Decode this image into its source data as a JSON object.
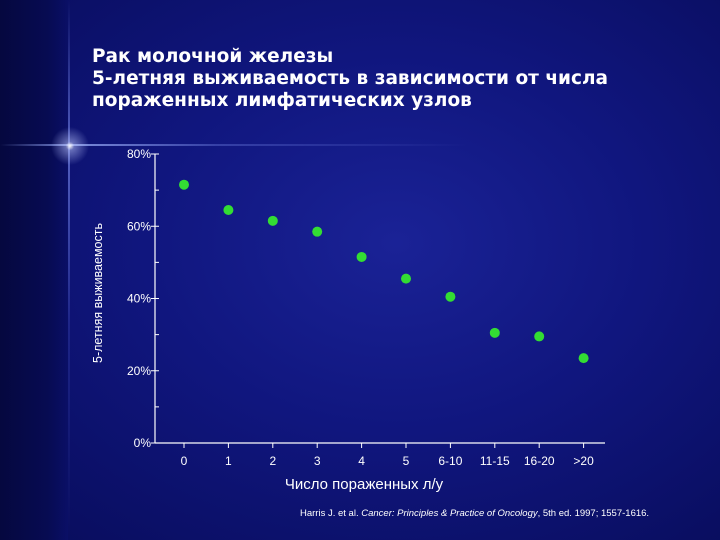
{
  "title_lines": [
    "Рак молочной железы",
    "5-летняя выживаемость в зависимости от числа",
    "пораженных лимфатических узлов"
  ],
  "source": {
    "before": "Harris J. et al. ",
    "italic": "Cancer: Principles & Practice of Oncology",
    "after": ", 5th ed. 1997; 1557-1616."
  },
  "colors": {
    "background": "#10167e",
    "marker": "#33dd33",
    "axis": "#ffffff",
    "text": "#ffffff"
  },
  "chart_data": {
    "type": "scatter",
    "xlabel": "Число пораженных л/у",
    "ylabel": "5-летняя выживаемость",
    "ylim": [
      0,
      80
    ],
    "yticks": [
      {
        "value": 0,
        "label": "0%"
      },
      {
        "value": 20,
        "label": "20%"
      },
      {
        "value": 40,
        "label": "40%"
      },
      {
        "value": 60,
        "label": "60%"
      },
      {
        "value": 80,
        "label": "80%"
      }
    ],
    "y_minor_ticks": [
      10,
      30,
      50,
      70
    ],
    "categories": [
      "0",
      "1",
      "2",
      "3",
      "4",
      "5",
      "6-10",
      "11-15",
      "16-20",
      ">20"
    ],
    "values": [
      71.5,
      64.5,
      61.5,
      58.5,
      51.5,
      45.5,
      40.5,
      30.5,
      29.5,
      23.5
    ],
    "grid": false,
    "legend": "none"
  }
}
